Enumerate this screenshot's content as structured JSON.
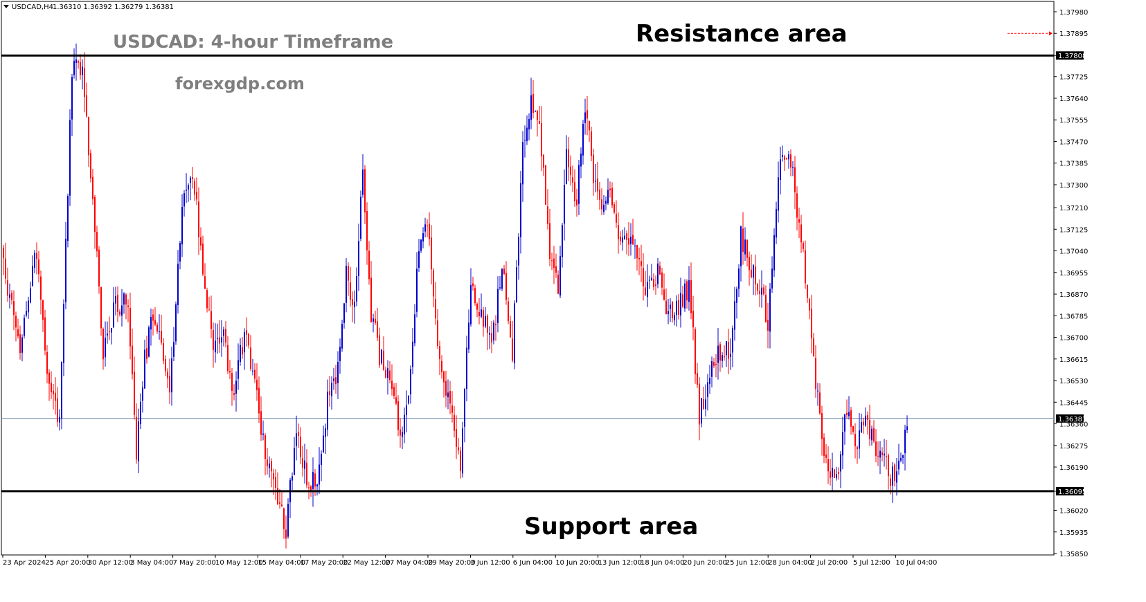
{
  "header": {
    "symbol": "USDCAD,H4",
    "ohlc": "1.36310 1.36392 1.36279 1.36381"
  },
  "watermark": {
    "title": "USDCAD: 4-hour Timeframe",
    "site": "forexgdp.com"
  },
  "annotations": {
    "resistance_label": "Resistance area",
    "support_label": "Support area"
  },
  "colors": {
    "bull": "#0000cc",
    "bear": "#ff0000",
    "level_line": "#000000",
    "current_price_line": "#7890b0",
    "tag_background": "#000000",
    "alert_line": "#ff0000"
  },
  "chart_data": {
    "type": "candlestick",
    "symbol": "USDCAD",
    "timeframe": "H4",
    "y_axis": {
      "range": [
        1.3585,
        1.3798
      ],
      "ticks": [
        "1.37980",
        "1.37895",
        "1.37808",
        "1.37725",
        "1.37640",
        "1.37555",
        "1.37470",
        "1.37385",
        "1.37300",
        "1.37210",
        "1.37125",
        "1.37040",
        "1.36955",
        "1.36870",
        "1.36785",
        "1.36700",
        "1.36615",
        "1.36530",
        "1.36445",
        "1.36360",
        "1.36275",
        "1.36190",
        "1.36095",
        "1.36020",
        "1.35935",
        "1.35850"
      ]
    },
    "x_axis": {
      "tick_labels": [
        "23 Apr 2024",
        "25 Apr 20:00",
        "30 Apr 12:00",
        "3 May 04:00",
        "7 May 20:00",
        "10 May 12:00",
        "15 May 04:00",
        "17 May 20:00",
        "22 May 12:00",
        "27 May 04:00",
        "29 May 20:00",
        "3 Jun 12:00",
        "6 Jun 04:00",
        "10 Jun 20:00",
        "13 Jun 12:00",
        "18 Jun 04:00",
        "20 Jun 20:00",
        "25 Jun 12:00",
        "28 Jun 04:00",
        "2 Jul 20:00",
        "5 Jul 12:00",
        "10 Jul 04:00"
      ]
    },
    "levels": {
      "resistance": 1.37808,
      "support": 1.36095,
      "current_price": 1.36381,
      "alert_level": 1.37895
    },
    "price_path": [
      [
        0,
        1.3697
      ],
      [
        8,
        1.3665
      ],
      [
        16,
        1.3705
      ],
      [
        22,
        1.365
      ],
      [
        27,
        1.3638
      ],
      [
        33,
        1.3775
      ],
      [
        38,
        1.3775
      ],
      [
        43,
        1.3723
      ],
      [
        48,
        1.3665
      ],
      [
        54,
        1.3682
      ],
      [
        60,
        1.3686
      ],
      [
        64,
        1.3625
      ],
      [
        68,
        1.3661
      ],
      [
        72,
        1.368
      ],
      [
        76,
        1.3667
      ],
      [
        80,
        1.3647
      ],
      [
        86,
        1.3723
      ],
      [
        91,
        1.3735
      ],
      [
        96,
        1.3698
      ],
      [
        101,
        1.3665
      ],
      [
        106,
        1.3676
      ],
      [
        110,
        1.3645
      ],
      [
        116,
        1.3672
      ],
      [
        121,
        1.3654
      ],
      [
        126,
        1.3623
      ],
      [
        131,
        1.361
      ],
      [
        136,
        1.3595
      ],
      [
        141,
        1.3635
      ],
      [
        146,
        1.3615
      ],
      [
        151,
        1.3612
      ],
      [
        156,
        1.3645
      ],
      [
        161,
        1.3658
      ],
      [
        165,
        1.3695
      ],
      [
        169,
        1.368
      ],
      [
        173,
        1.3735
      ],
      [
        177,
        1.368
      ],
      [
        181,
        1.3663
      ],
      [
        186,
        1.3655
      ],
      [
        191,
        1.363
      ],
      [
        195,
        1.365
      ],
      [
        200,
        1.3705
      ],
      [
        204,
        1.3718
      ],
      [
        208,
        1.3675
      ],
      [
        212,
        1.3655
      ],
      [
        216,
        1.364
      ],
      [
        220,
        1.362
      ],
      [
        225,
        1.369
      ],
      [
        230,
        1.368
      ],
      [
        235,
        1.3665
      ],
      [
        240,
        1.37
      ],
      [
        245,
        1.3665
      ],
      [
        250,
        1.3745
      ],
      [
        254,
        1.3765
      ],
      [
        258,
        1.3752
      ],
      [
        263,
        1.3705
      ],
      [
        267,
        1.3688
      ],
      [
        271,
        1.374
      ],
      [
        276,
        1.3725
      ],
      [
        280,
        1.376
      ],
      [
        284,
        1.3735
      ],
      [
        288,
        1.3723
      ],
      [
        292,
        1.373
      ],
      [
        296,
        1.3705
      ],
      [
        300,
        1.3712
      ],
      [
        305,
        1.3702
      ],
      [
        310,
        1.3688
      ],
      [
        315,
        1.3695
      ],
      [
        320,
        1.3678
      ],
      [
        325,
        1.3683
      ],
      [
        330,
        1.369
      ],
      [
        335,
        1.364
      ],
      [
        340,
        1.3655
      ],
      [
        345,
        1.3665
      ],
      [
        350,
        1.3665
      ],
      [
        355,
        1.371
      ],
      [
        360,
        1.3698
      ],
      [
        364,
        1.369
      ],
      [
        368,
        1.3675
      ],
      [
        373,
        1.3735
      ],
      [
        378,
        1.3745
      ],
      [
        382,
        1.372
      ],
      [
        386,
        1.3694
      ],
      [
        390,
        1.366
      ],
      [
        394,
        1.363
      ],
      [
        398,
        1.3618
      ],
      [
        402,
        1.3618
      ],
      [
        406,
        1.3642
      ],
      [
        410,
        1.3625
      ],
      [
        414,
        1.3638
      ],
      [
        418,
        1.363
      ],
      [
        422,
        1.3625
      ],
      [
        427,
        1.3615
      ],
      [
        431,
        1.3618
      ],
      [
        435,
        1.3635
      ]
    ]
  }
}
